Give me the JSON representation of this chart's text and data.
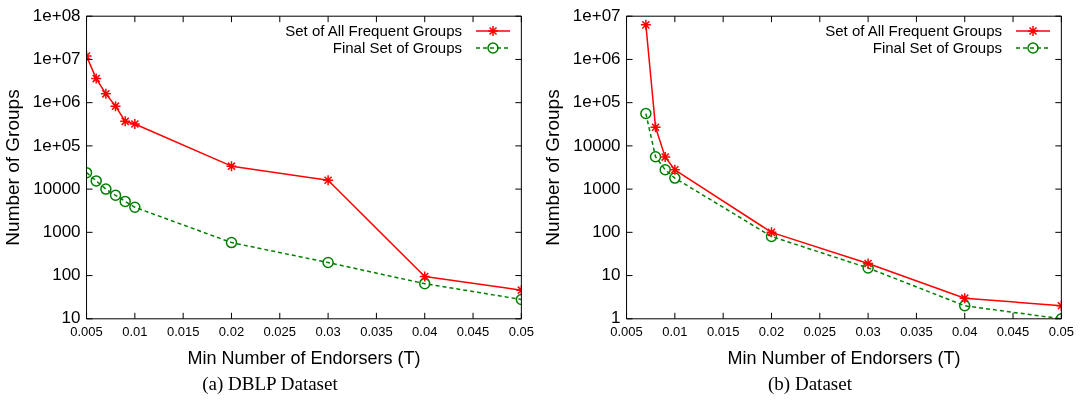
{
  "chart_data": [
    {
      "type": "line",
      "title": "(a)  DBLP Dataset",
      "xlabel": "Min Number of Endorsers (T)",
      "ylabel": "Number of Groups",
      "log": "y",
      "grid": false,
      "legend": "top right",
      "xlim": [
        0.005,
        0.05
      ],
      "xticks": [
        0.005,
        0.01,
        0.015,
        0.02,
        0.025,
        0.03,
        0.035,
        0.04,
        0.045,
        0.05
      ],
      "ylim": [
        10,
        100000000
      ],
      "yticks": [
        10,
        100,
        1000,
        10000,
        {
          "value": 100000,
          "label": "1e+05"
        },
        {
          "value": 1000000,
          "label": "1e+06"
        },
        {
          "value": 10000000,
          "label": "1e+07"
        },
        {
          "value": 100000000,
          "label": "1e+08"
        }
      ],
      "series": [
        {
          "name": "Set of All Frequent Groups",
          "color": "#ff0000",
          "marker": "cross",
          "line_style": "solid",
          "x": [
            0.005,
            0.006,
            0.007,
            0.008,
            0.009,
            0.01,
            0.02,
            0.03,
            0.04,
            0.05
          ],
          "values": [
            12000000,
            3600000,
            1600000,
            830000,
            370000,
            320000,
            34000,
            16000,
            95,
            46
          ]
        },
        {
          "name": "Final Set of Groups",
          "color": "#008000",
          "marker": "circle",
          "line_style": "dashed",
          "x": [
            0.005,
            0.006,
            0.007,
            0.008,
            0.009,
            0.01,
            0.02,
            0.03,
            0.04,
            0.05
          ],
          "values": [
            24000,
            15500,
            10000,
            7200,
            5200,
            3800,
            580,
            200,
            65,
            28
          ]
        }
      ]
    },
    {
      "type": "line",
      "title": "(b)  Dataset",
      "xlabel": "Min Number of Endorsers (T)",
      "ylabel": "Number of Groups",
      "log": "y",
      "grid": false,
      "legend": "top right",
      "xlim": [
        0.005,
        0.05
      ],
      "xticks": [
        0.005,
        0.01,
        0.015,
        0.02,
        0.025,
        0.03,
        0.035,
        0.04,
        0.045,
        0.05
      ],
      "ylim": [
        1,
        10000000
      ],
      "yticks": [
        1,
        10,
        100,
        1000,
        10000,
        {
          "value": 100000,
          "label": "1e+05"
        },
        {
          "value": 1000000,
          "label": "1e+06"
        },
        {
          "value": 10000000,
          "label": "1e+07"
        }
      ],
      "series": [
        {
          "name": "Set of All Frequent Groups",
          "color": "#ff0000",
          "marker": "cross",
          "line_style": "solid",
          "x": [
            0.007,
            0.008,
            0.009,
            0.01,
            0.02,
            0.03,
            0.04,
            0.05
          ],
          "values": [
            6300000,
            27000,
            5500,
            2800,
            100,
            19,
            3,
            2
          ]
        },
        {
          "name": "Final Set of Groups",
          "color": "#008000",
          "marker": "circle",
          "line_style": "dashed",
          "x": [
            0.007,
            0.008,
            0.009,
            0.01,
            0.02,
            0.03,
            0.04,
            0.05
          ],
          "values": [
            56000,
            5600,
            2800,
            1800,
            80,
            15,
            2,
            1
          ]
        }
      ]
    }
  ]
}
